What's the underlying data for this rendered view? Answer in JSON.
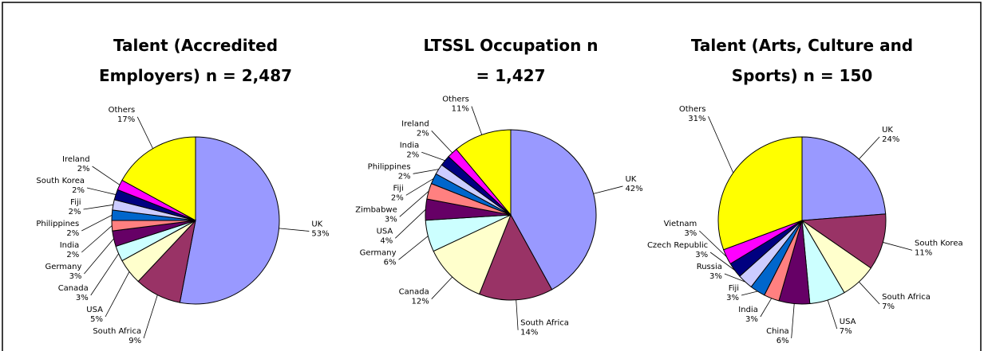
{
  "chart_data": [
    {
      "type": "pie",
      "title": "Talent (Accredited Employers) n = 2,487",
      "categories": [
        "UK",
        "South Africa",
        "USA",
        "Canada",
        "Germany",
        "India",
        "Philippines",
        "Fiji",
        "South Korea",
        "Ireland",
        "Others"
      ],
      "values": [
        53,
        9,
        5,
        3,
        3,
        2,
        2,
        2,
        2,
        2,
        17
      ],
      "value_labels": [
        "53%",
        "9%",
        "5%",
        "3%",
        "3%",
        "2%",
        "2%",
        "2%",
        "2%",
        "2%",
        "17%"
      ],
      "colors": [
        "#9999ff",
        "#993366",
        "#ffffcc",
        "#ccffff",
        "#660066",
        "#ff8080",
        "#0066cc",
        "#ccccff",
        "#000080",
        "#ff00ff",
        "#ffff00"
      ]
    },
    {
      "type": "pie",
      "title": "LTSSL Occupation n = 1,427",
      "categories": [
        "UK",
        "South Africa",
        "Canada",
        "Germany",
        "USA",
        "Zimbabwe",
        "Fiji",
        "Philippines",
        "India",
        "Ireland",
        "Others"
      ],
      "values": [
        42,
        14,
        12,
        6,
        4,
        3,
        2,
        2,
        2,
        2,
        11
      ],
      "value_labels": [
        "42%",
        "14%",
        "12%",
        "6%",
        "4%",
        "3%",
        "2%",
        "2%",
        "2%",
        "2%",
        "11%"
      ],
      "colors": [
        "#9999ff",
        "#993366",
        "#ffffcc",
        "#ccffff",
        "#660066",
        "#ff8080",
        "#0066cc",
        "#ccccff",
        "#000080",
        "#ff00ff",
        "#ffff00"
      ]
    },
    {
      "type": "pie",
      "title": "Talent (Arts, Culture and Sports) n = 150",
      "categories": [
        "UK",
        "South Korea",
        "South Africa",
        "USA",
        "China",
        "India",
        "Fiji",
        "Russia",
        "Czech Republic",
        "Vietnam",
        "Others"
      ],
      "values": [
        24,
        11,
        7,
        7,
        6,
        3,
        3,
        3,
        3,
        3,
        31
      ],
      "value_labels": [
        "24%",
        "11%",
        "7%",
        "7%",
        "6%",
        "3%",
        "3%",
        "3%",
        "3%",
        "3%",
        "31%"
      ],
      "colors": [
        "#9999ff",
        "#993366",
        "#ffffcc",
        "#ccffff",
        "#660066",
        "#ff8080",
        "#0066cc",
        "#ccccff",
        "#000080",
        "#ff00ff",
        "#ffff00"
      ]
    }
  ]
}
